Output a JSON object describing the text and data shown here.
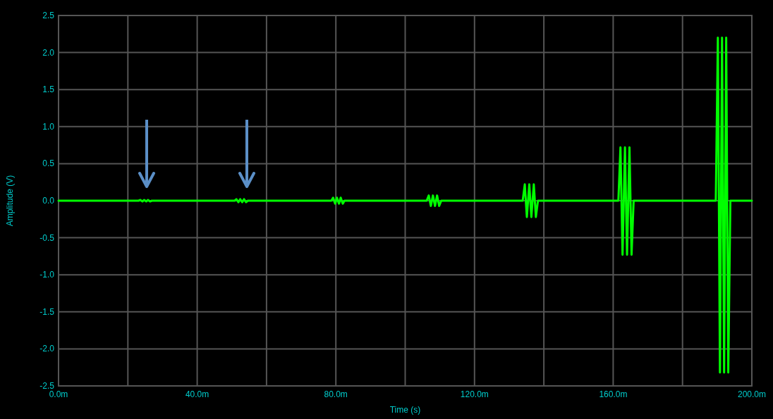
{
  "chart_data": {
    "type": "line",
    "xlabel": "Time (s)",
    "ylabel": "Amplitude (V)",
    "xlim": [
      0,
      200
    ],
    "ylim": [
      -2.5,
      2.5
    ],
    "xticks": [
      {
        "value": 0,
        "label": "0.0m"
      },
      {
        "value": 20,
        "label": null
      },
      {
        "value": 40,
        "label": "40.0m"
      },
      {
        "value": 60,
        "label": null
      },
      {
        "value": 80,
        "label": "80.0m"
      },
      {
        "value": 100,
        "label": null
      },
      {
        "value": 120,
        "label": "120.0m"
      },
      {
        "value": 140,
        "label": null
      },
      {
        "value": 160,
        "label": "160.0m"
      },
      {
        "value": 180,
        "label": null
      },
      {
        "value": 200,
        "label": "200.0m"
      }
    ],
    "yticks": [
      2.5,
      {
        "value": 2,
        "label": "2.0"
      },
      1.5,
      {
        "value": 1,
        "label": "1.0"
      },
      0.5,
      {
        "value": 0,
        "label": "0.0"
      },
      -0.5,
      {
        "value": -1,
        "label": "-1.0"
      },
      -1.5,
      {
        "value": -2,
        "label": "-2.0"
      },
      -2.5
    ],
    "grid": true,
    "series": [
      {
        "color": "#00ff00",
        "x": [
          0,
          23.1,
          23.6,
          24.2,
          24.7,
          25.3,
          25.8,
          26.4,
          26.9,
          50.8,
          51.3,
          51.9,
          52.4,
          53,
          53.5,
          54.1,
          54.6,
          78.7,
          79.2,
          79.8,
          80.3,
          80.9,
          81.4,
          82,
          82.5,
          106.2,
          106.8,
          107.4,
          108,
          108.6,
          109.2,
          109.8,
          110.4,
          133.9,
          134.5,
          135.1,
          135.8,
          136.4,
          137.1,
          137.7,
          138.3,
          161.5,
          162.1,
          162.7,
          163.4,
          164,
          164.7,
          165.3,
          165.9,
          189.6,
          190.2,
          190.8,
          191.4,
          192,
          192.6,
          193.2,
          193.8,
          200
        ],
        "values": [
          0,
          0,
          0.01,
          -0.01,
          0.01,
          -0.01,
          0.01,
          -0.01,
          0,
          0,
          0.02,
          -0.02,
          0.02,
          -0.02,
          0.02,
          -0.02,
          0,
          0,
          0.04,
          -0.04,
          0.04,
          -0.04,
          0.04,
          -0.04,
          0,
          0,
          0.07,
          -0.07,
          0.07,
          -0.07,
          0.07,
          -0.07,
          0,
          0,
          0.22,
          -0.22,
          0.22,
          -0.22,
          0.22,
          -0.22,
          0,
          0,
          0.72,
          -0.73,
          0.72,
          -0.73,
          0.72,
          -0.73,
          0,
          0,
          2.2,
          -2.32,
          2.2,
          -2.32,
          2.2,
          -2.32,
          0,
          0
        ]
      }
    ]
  }
}
